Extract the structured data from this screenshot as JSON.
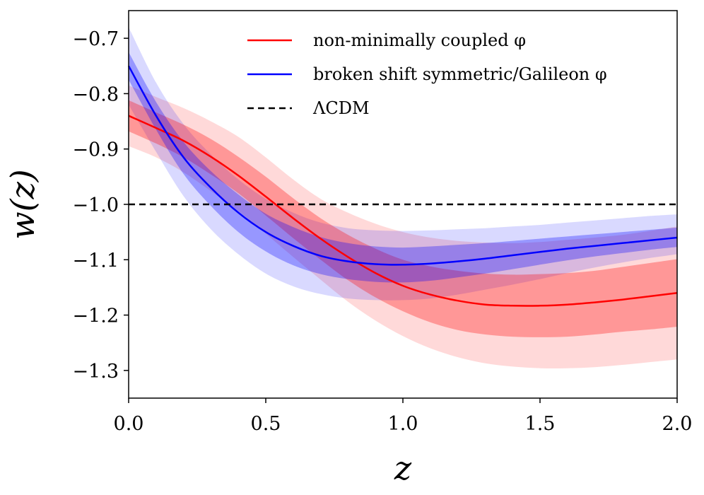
{
  "chart_data": {
    "type": "line",
    "xlabel": "z",
    "ylabel": "w(z)",
    "xlim": [
      0.0,
      2.0
    ],
    "ylim": [
      -1.35,
      -0.65
    ],
    "x_ticks": [
      "0.0",
      "0.5",
      "1.0",
      "1.5",
      "2.0"
    ],
    "y_ticks": [
      "−0.7",
      "−0.8",
      "−0.9",
      "−1.0",
      "−1.1",
      "−1.2",
      "−1.3"
    ],
    "x_tick_values": [
      0.0,
      0.5,
      1.0,
      1.5,
      2.0
    ],
    "y_tick_values": [
      -0.7,
      -0.8,
      -0.9,
      -1.0,
      -1.1,
      -1.2,
      -1.3
    ],
    "grid": false,
    "legend_position": "top-right",
    "x": [
      0.0,
      0.1,
      0.2,
      0.3,
      0.4,
      0.5,
      0.6,
      0.7,
      0.8,
      0.9,
      1.0,
      1.1,
      1.2,
      1.3,
      1.4,
      1.5,
      1.6,
      1.7,
      1.8,
      1.9,
      2.0
    ],
    "series": [
      {
        "name": "non-minimally coupled φ",
        "color": "#ff0000",
        "dashed": false,
        "values": [
          -0.84,
          -0.862,
          -0.885,
          -0.914,
          -0.948,
          -0.986,
          -1.025,
          -1.062,
          -1.095,
          -1.124,
          -1.147,
          -1.163,
          -1.174,
          -1.181,
          -1.183,
          -1.183,
          -1.181,
          -1.177,
          -1.172,
          -1.166,
          -1.16
        ],
        "band1_lower": [
          -0.868,
          -0.89,
          -0.915,
          -0.946,
          -0.98,
          -1.02,
          -1.061,
          -1.1,
          -1.137,
          -1.168,
          -1.193,
          -1.213,
          -1.227,
          -1.235,
          -1.239,
          -1.24,
          -1.239,
          -1.235,
          -1.23,
          -1.226,
          -1.221
        ],
        "band1_upper": [
          -0.812,
          -0.834,
          -0.856,
          -0.882,
          -0.914,
          -0.95,
          -0.989,
          -1.025,
          -1.055,
          -1.08,
          -1.1,
          -1.112,
          -1.12,
          -1.125,
          -1.127,
          -1.126,
          -1.124,
          -1.12,
          -1.113,
          -1.106,
          -1.099
        ],
        "band2_lower": [
          -0.895,
          -0.915,
          -0.942,
          -0.976,
          -1.012,
          -1.053,
          -1.095,
          -1.136,
          -1.176,
          -1.21,
          -1.238,
          -1.26,
          -1.276,
          -1.287,
          -1.293,
          -1.296,
          -1.296,
          -1.294,
          -1.29,
          -1.285,
          -1.28
        ],
        "band2_upper": [
          -0.785,
          -0.806,
          -0.826,
          -0.85,
          -0.878,
          -0.915,
          -0.955,
          -0.99,
          -1.015,
          -1.035,
          -1.05,
          -1.06,
          -1.066,
          -1.069,
          -1.07,
          -1.068,
          -1.064,
          -1.06,
          -1.055,
          -1.048,
          -1.04
        ]
      },
      {
        "name": "broken shift symmetric/Galileon φ",
        "color": "#0000ff",
        "dashed": false,
        "values": [
          -0.75,
          -0.84,
          -0.915,
          -0.97,
          -1.015,
          -1.05,
          -1.075,
          -1.093,
          -1.103,
          -1.108,
          -1.109,
          -1.107,
          -1.103,
          -1.098,
          -1.092,
          -1.086,
          -1.08,
          -1.075,
          -1.07,
          -1.065,
          -1.06
        ],
        "band1_lower": [
          -0.775,
          -0.865,
          -0.945,
          -1.003,
          -1.05,
          -1.085,
          -1.11,
          -1.126,
          -1.135,
          -1.14,
          -1.141,
          -1.138,
          -1.132,
          -1.125,
          -1.117,
          -1.109,
          -1.101,
          -1.094,
          -1.088,
          -1.082,
          -1.077
        ],
        "band1_upper": [
          -0.725,
          -0.815,
          -0.887,
          -0.94,
          -0.982,
          -1.017,
          -1.041,
          -1.059,
          -1.07,
          -1.076,
          -1.078,
          -1.076,
          -1.073,
          -1.07,
          -1.066,
          -1.062,
          -1.058,
          -1.054,
          -1.05,
          -1.046,
          -1.042
        ],
        "band2_lower": [
          -0.82,
          -0.905,
          -0.985,
          -1.045,
          -1.09,
          -1.125,
          -1.148,
          -1.162,
          -1.17,
          -1.173,
          -1.173,
          -1.17,
          -1.163,
          -1.154,
          -1.145,
          -1.135,
          -1.124,
          -1.114,
          -1.105,
          -1.097,
          -1.09
        ],
        "band2_upper": [
          -0.68,
          -0.78,
          -0.855,
          -0.91,
          -0.955,
          -0.99,
          -1.015,
          -1.033,
          -1.043,
          -1.047,
          -1.048,
          -1.047,
          -1.045,
          -1.043,
          -1.04,
          -1.037,
          -1.033,
          -1.029,
          -1.025,
          -1.021,
          -1.018
        ]
      },
      {
        "name": "ΛCDM",
        "color": "#000000",
        "dashed": true,
        "values": [
          -1.0,
          -1.0,
          -1.0,
          -1.0,
          -1.0,
          -1.0,
          -1.0,
          -1.0,
          -1.0,
          -1.0,
          -1.0,
          -1.0,
          -1.0,
          -1.0,
          -1.0,
          -1.0,
          -1.0,
          -1.0,
          -1.0,
          -1.0,
          -1.0
        ]
      }
    ]
  }
}
